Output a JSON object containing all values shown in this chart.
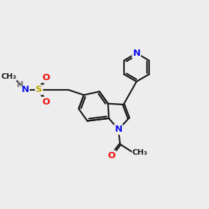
{
  "bg_color": "#ededed",
  "bond_color": "#1a1a1a",
  "bond_width": 1.6,
  "atom_colors": {
    "N": "#1010ee",
    "O": "#ee1010",
    "S": "#bbaa00",
    "H": "#777777",
    "C": "#1a1a1a"
  },
  "font_size_atom": 9.5,
  "fig_size": [
    3.0,
    3.0
  ],
  "dpi": 100,
  "xlim": [
    0,
    12
  ],
  "ylim": [
    0,
    12
  ]
}
